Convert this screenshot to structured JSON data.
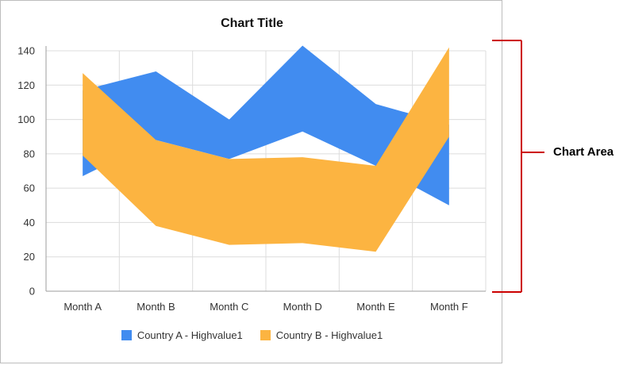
{
  "chart_data": {
    "type": "area",
    "title": "Chart Title",
    "categories": [
      "Month A",
      "Month B",
      "Month C",
      "Month D",
      "Month E",
      "Month F"
    ],
    "ylim": [
      0,
      140
    ],
    "yticks": [
      0,
      20,
      40,
      60,
      80,
      100,
      120,
      140
    ],
    "grid": true,
    "legend_position": "bottom",
    "series": [
      {
        "name": "Country A - Highvalue1",
        "color": "#418CF0",
        "high": [
          117,
          128,
          100,
          143,
          109,
          97
        ],
        "low": [
          67,
          88,
          77,
          93,
          73,
          50
        ]
      },
      {
        "name": "Country B - Highvalue1",
        "color": "#FCB441",
        "high": [
          127,
          88,
          77,
          78,
          73,
          142
        ],
        "low": [
          79,
          38,
          27,
          28,
          23,
          90
        ]
      }
    ]
  },
  "annotation": {
    "label": "Chart Area",
    "bracket_color": "#CC0000"
  }
}
